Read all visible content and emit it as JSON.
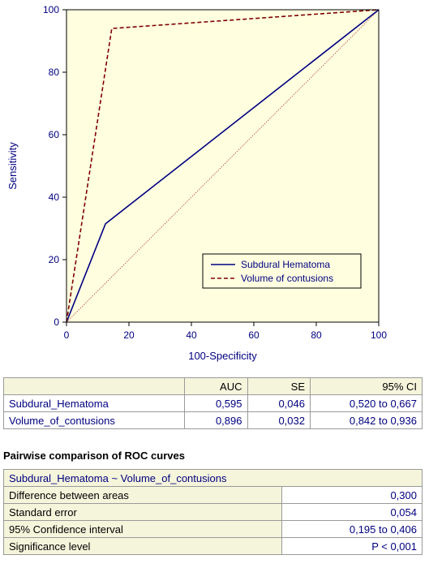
{
  "chart_data": {
    "type": "line",
    "xlabel": "100-Specificity",
    "ylabel": "Sensitivity",
    "xlim": [
      0,
      100
    ],
    "ylim": [
      0,
      100
    ],
    "xticks": [
      0,
      20,
      40,
      60,
      80,
      100
    ],
    "yticks": [
      0,
      20,
      40,
      60,
      80,
      100
    ],
    "grid": false,
    "legend_position": "bottom-right",
    "series": [
      {
        "name": "Subdural Hematoma",
        "style": "solid",
        "color": "#000080",
        "x": [
          0,
          12.5,
          100
        ],
        "y": [
          0,
          31.5,
          100
        ]
      },
      {
        "name": "Volume of contusions",
        "style": "dashed",
        "color": "#800000",
        "x": [
          0,
          14.5,
          100
        ],
        "y": [
          0,
          94,
          100
        ]
      },
      {
        "name": "",
        "style": "dotted",
        "color": "#c06060",
        "x": [
          0,
          100
        ],
        "y": [
          0,
          100
        ]
      }
    ]
  },
  "auc_table": {
    "headers": [
      "AUC",
      "SE",
      "95% CI"
    ],
    "rows": [
      {
        "name": "Subdural_Hematoma",
        "auc": "0,595",
        "se": "0,046",
        "ci": "0,520 to 0,667"
      },
      {
        "name": "Volume_of_contusions",
        "auc": "0,896",
        "se": "0,032",
        "ci": "0,842 to 0,936"
      }
    ]
  },
  "pairwise": {
    "title": "Pairwise comparison of ROC curves",
    "comparison": "Subdural_Hematoma ~ Volume_of_contusions",
    "rows": [
      {
        "label": "Difference between areas",
        "value": "0,300"
      },
      {
        "label": "Standard error",
        "value": "0,054"
      },
      {
        "label": "95% Confidence interval",
        "value": "0,195 to 0,406"
      },
      {
        "label": "Significance level",
        "value": "P < 0,001"
      }
    ]
  }
}
